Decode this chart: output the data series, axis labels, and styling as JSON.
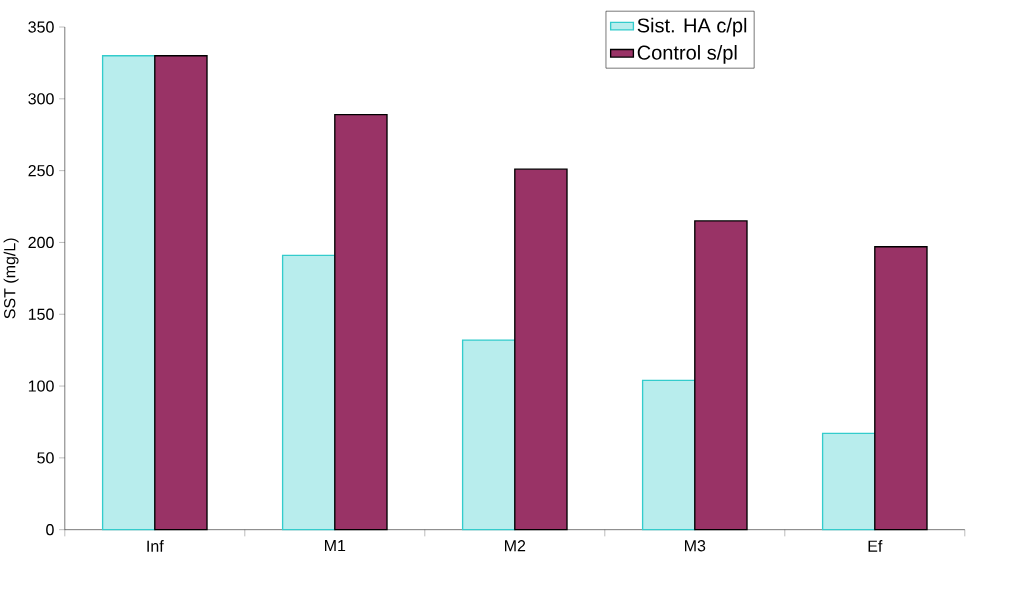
{
  "chart_data": {
    "type": "bar",
    "ylabel": "SST (mg/L)",
    "categories": [
      "Inf",
      "M1",
      "M2",
      "M3",
      "Ef"
    ],
    "series": [
      {
        "name": "Sist. HA c/pl",
        "color": "#33cccc",
        "values": [
          330,
          191,
          132,
          104,
          67
        ]
      },
      {
        "name": "Control s/pl",
        "color": "#993366",
        "values": [
          330,
          289,
          251,
          215,
          197
        ]
      }
    ],
    "ylim": [
      0,
      350
    ],
    "yticks": [
      0,
      50,
      100,
      150,
      200,
      250,
      300,
      350
    ],
    "grid": false,
    "legend": "top right"
  }
}
